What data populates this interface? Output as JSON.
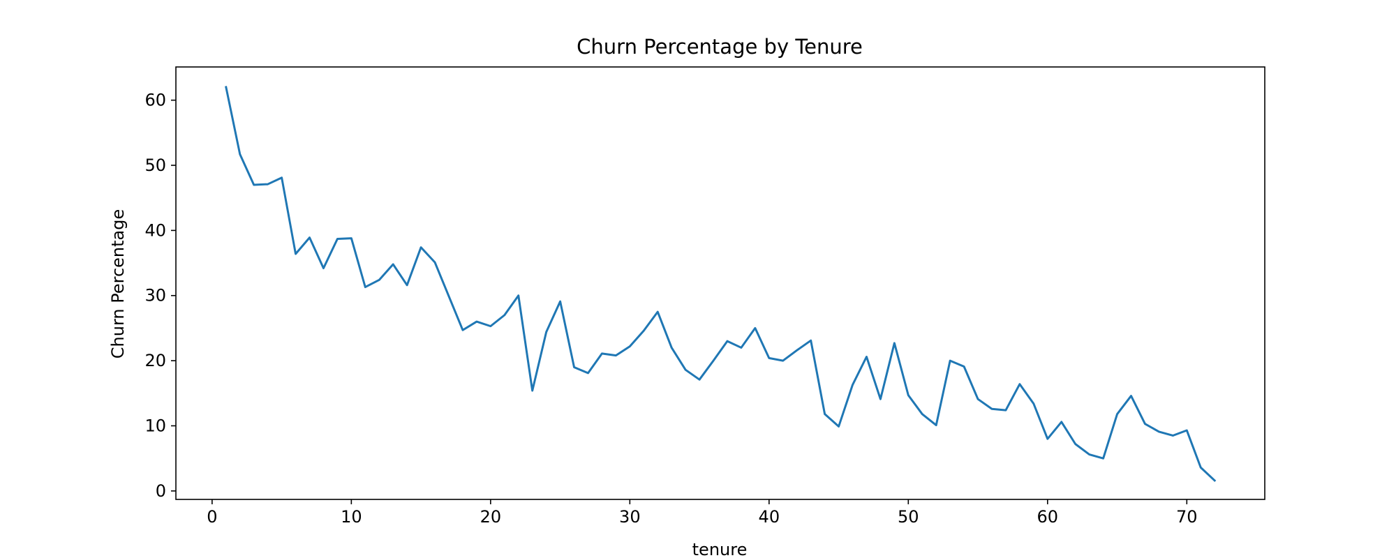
{
  "chart_data": {
    "type": "line",
    "title": "Churn Percentage by Tenure",
    "xlabel": "tenure",
    "ylabel": "Churn Percentage",
    "xlim": [
      -2.6,
      75.6
    ],
    "ylim": [
      -1.3,
      65.1
    ],
    "xticks": [
      0,
      10,
      20,
      30,
      40,
      50,
      60,
      70
    ],
    "yticks": [
      0,
      10,
      20,
      30,
      40,
      50,
      60
    ],
    "grid": false,
    "colors": {
      "line": "#1f77b4",
      "axes": "#000000",
      "background": "#ffffff"
    },
    "series": [
      {
        "x": [
          1,
          2,
          3,
          4,
          5,
          6,
          7,
          8,
          9,
          10,
          11,
          12,
          13,
          14,
          15,
          16,
          17,
          18,
          19,
          20,
          21,
          22,
          23,
          24,
          25,
          26,
          27,
          28,
          29,
          30,
          31,
          32,
          33,
          34,
          35,
          36,
          37,
          38,
          39,
          40,
          41,
          42,
          43,
          44,
          45,
          46,
          47,
          48,
          49,
          50,
          51,
          52,
          53,
          54,
          55,
          56,
          57,
          58,
          59,
          60,
          61,
          62,
          63,
          64,
          65,
          66,
          67,
          68,
          69,
          70,
          71,
          72
        ],
        "values": [
          62.0,
          51.7,
          47.0,
          47.1,
          48.1,
          36.4,
          38.9,
          34.2,
          38.7,
          38.8,
          31.3,
          32.4,
          34.8,
          31.6,
          37.4,
          35.1,
          29.9,
          24.7,
          26.0,
          25.3,
          27.0,
          30.0,
          15.4,
          24.4,
          29.1,
          19.0,
          18.1,
          21.1,
          20.8,
          22.2,
          24.6,
          27.5,
          22.0,
          18.6,
          17.1,
          20.0,
          23.0,
          22.0,
          25.0,
          20.4,
          20.0,
          21.6,
          23.1,
          11.8,
          9.9,
          16.3,
          20.6,
          14.1,
          22.7,
          14.7,
          11.8,
          10.1,
          20.0,
          19.1,
          14.1,
          12.6,
          12.4,
          16.4,
          13.4,
          8.0,
          10.6,
          7.2,
          5.6,
          5.0,
          11.8,
          14.6,
          10.3,
          9.1,
          8.5,
          9.3,
          3.6,
          1.6
        ]
      }
    ]
  }
}
